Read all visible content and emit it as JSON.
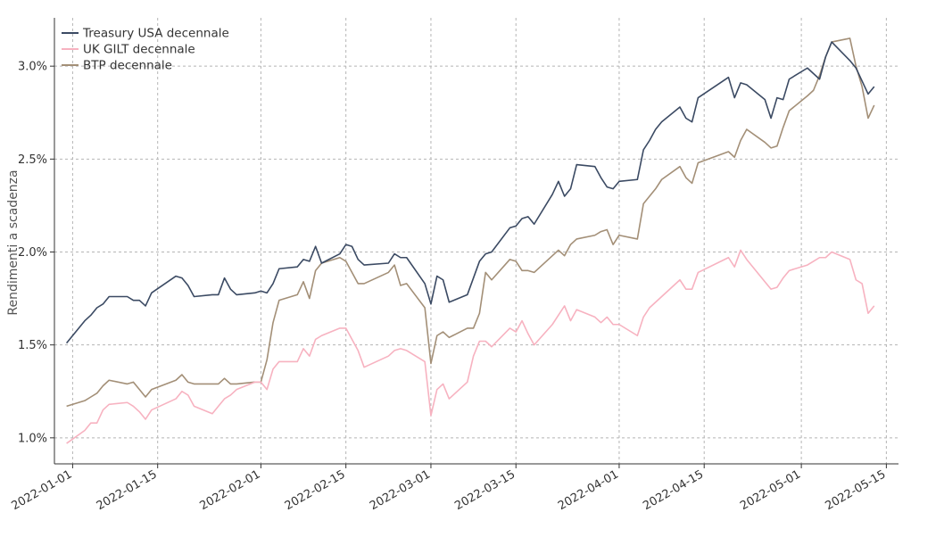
{
  "chart_data": {
    "type": "line",
    "ylabel": "Rendimenti a scadenza",
    "xlabel": "",
    "x_ticks": [
      "2022-01-01",
      "2022-01-15",
      "2022-02-01",
      "2022-02-15",
      "2022-03-01",
      "2022-03-15",
      "2022-04-01",
      "2022-04-15",
      "2022-05-01",
      "2022-05-15"
    ],
    "y_ticks": [
      "1.0%",
      "1.5%",
      "2.0%",
      "2.5%",
      "3.0%"
    ],
    "xlim": [
      "2021-12-29",
      "2022-05-17"
    ],
    "ylim": [
      0.86,
      3.26
    ],
    "grid": true,
    "legend_position": "top-left",
    "series": [
      {
        "name": "Treasury USA decennale",
        "color": "#3b4a63",
        "points": [
          [
            "2021-12-31",
            1.51
          ],
          [
            "2022-01-03",
            1.63
          ],
          [
            "2022-01-04",
            1.66
          ],
          [
            "2022-01-05",
            1.7
          ],
          [
            "2022-01-06",
            1.72
          ],
          [
            "2022-01-07",
            1.76
          ],
          [
            "2022-01-10",
            1.76
          ],
          [
            "2022-01-11",
            1.74
          ],
          [
            "2022-01-12",
            1.74
          ],
          [
            "2022-01-13",
            1.71
          ],
          [
            "2022-01-14",
            1.78
          ],
          [
            "2022-01-18",
            1.87
          ],
          [
            "2022-01-19",
            1.86
          ],
          [
            "2022-01-20",
            1.82
          ],
          [
            "2022-01-21",
            1.76
          ],
          [
            "2022-01-24",
            1.77
          ],
          [
            "2022-01-25",
            1.77
          ],
          [
            "2022-01-26",
            1.86
          ],
          [
            "2022-01-27",
            1.8
          ],
          [
            "2022-01-28",
            1.77
          ],
          [
            "2022-01-31",
            1.78
          ],
          [
            "2022-02-01",
            1.79
          ],
          [
            "2022-02-02",
            1.78
          ],
          [
            "2022-02-03",
            1.83
          ],
          [
            "2022-02-04",
            1.91
          ],
          [
            "2022-02-07",
            1.92
          ],
          [
            "2022-02-08",
            1.96
          ],
          [
            "2022-02-09",
            1.95
          ],
          [
            "2022-02-10",
            2.03
          ],
          [
            "2022-02-11",
            1.94
          ],
          [
            "2022-02-14",
            1.99
          ],
          [
            "2022-02-15",
            2.04
          ],
          [
            "2022-02-16",
            2.03
          ],
          [
            "2022-02-17",
            1.96
          ],
          [
            "2022-02-18",
            1.93
          ],
          [
            "2022-02-22",
            1.94
          ],
          [
            "2022-02-23",
            1.99
          ],
          [
            "2022-02-24",
            1.97
          ],
          [
            "2022-02-25",
            1.97
          ],
          [
            "2022-02-28",
            1.83
          ],
          [
            "2022-03-01",
            1.72
          ],
          [
            "2022-03-02",
            1.87
          ],
          [
            "2022-03-03",
            1.85
          ],
          [
            "2022-03-04",
            1.73
          ],
          [
            "2022-03-07",
            1.77
          ],
          [
            "2022-03-08",
            1.86
          ],
          [
            "2022-03-09",
            1.95
          ],
          [
            "2022-03-10",
            1.99
          ],
          [
            "2022-03-11",
            2.0
          ],
          [
            "2022-03-14",
            2.13
          ],
          [
            "2022-03-15",
            2.14
          ],
          [
            "2022-03-16",
            2.18
          ],
          [
            "2022-03-17",
            2.19
          ],
          [
            "2022-03-18",
            2.15
          ],
          [
            "2022-03-21",
            2.31
          ],
          [
            "2022-03-22",
            2.38
          ],
          [
            "2022-03-23",
            2.3
          ],
          [
            "2022-03-24",
            2.34
          ],
          [
            "2022-03-25",
            2.47
          ],
          [
            "2022-03-28",
            2.46
          ],
          [
            "2022-03-29",
            2.4
          ],
          [
            "2022-03-30",
            2.35
          ],
          [
            "2022-03-31",
            2.34
          ],
          [
            "2022-04-01",
            2.38
          ],
          [
            "2022-04-04",
            2.39
          ],
          [
            "2022-04-05",
            2.55
          ],
          [
            "2022-04-06",
            2.6
          ],
          [
            "2022-04-07",
            2.66
          ],
          [
            "2022-04-08",
            2.7
          ],
          [
            "2022-04-11",
            2.78
          ],
          [
            "2022-04-12",
            2.72
          ],
          [
            "2022-04-13",
            2.7
          ],
          [
            "2022-04-14",
            2.83
          ],
          [
            "2022-04-19",
            2.94
          ],
          [
            "2022-04-20",
            2.83
          ],
          [
            "2022-04-21",
            2.91
          ],
          [
            "2022-04-22",
            2.9
          ],
          [
            "2022-04-25",
            2.82
          ],
          [
            "2022-04-26",
            2.72
          ],
          [
            "2022-04-27",
            2.83
          ],
          [
            "2022-04-28",
            2.82
          ],
          [
            "2022-04-29",
            2.93
          ],
          [
            "2022-05-02",
            2.99
          ],
          [
            "2022-05-03",
            2.96
          ],
          [
            "2022-05-04",
            2.93
          ],
          [
            "2022-05-05",
            3.05
          ],
          [
            "2022-05-06",
            3.13
          ],
          [
            "2022-05-09",
            3.03
          ],
          [
            "2022-05-10",
            2.99
          ],
          [
            "2022-05-11",
            2.92
          ],
          [
            "2022-05-12",
            2.85
          ],
          [
            "2022-05-13",
            2.89
          ]
        ]
      },
      {
        "name": "UK GILT decennale",
        "color": "#f7b2c0",
        "points": [
          [
            "2021-12-31",
            0.97
          ],
          [
            "2022-01-03",
            1.04
          ],
          [
            "2022-01-04",
            1.08
          ],
          [
            "2022-01-05",
            1.08
          ],
          [
            "2022-01-06",
            1.15
          ],
          [
            "2022-01-07",
            1.18
          ],
          [
            "2022-01-10",
            1.19
          ],
          [
            "2022-01-11",
            1.17
          ],
          [
            "2022-01-12",
            1.14
          ],
          [
            "2022-01-13",
            1.1
          ],
          [
            "2022-01-14",
            1.15
          ],
          [
            "2022-01-18",
            1.21
          ],
          [
            "2022-01-19",
            1.25
          ],
          [
            "2022-01-20",
            1.23
          ],
          [
            "2022-01-21",
            1.17
          ],
          [
            "2022-01-24",
            1.13
          ],
          [
            "2022-01-25",
            1.17
          ],
          [
            "2022-01-26",
            1.21
          ],
          [
            "2022-01-27",
            1.23
          ],
          [
            "2022-01-28",
            1.26
          ],
          [
            "2022-01-31",
            1.3
          ],
          [
            "2022-02-01",
            1.3
          ],
          [
            "2022-02-02",
            1.26
          ],
          [
            "2022-02-03",
            1.37
          ],
          [
            "2022-02-04",
            1.41
          ],
          [
            "2022-02-07",
            1.41
          ],
          [
            "2022-02-08",
            1.48
          ],
          [
            "2022-02-09",
            1.44
          ],
          [
            "2022-02-10",
            1.53
          ],
          [
            "2022-02-11",
            1.55
          ],
          [
            "2022-02-14",
            1.59
          ],
          [
            "2022-02-15",
            1.59
          ],
          [
            "2022-02-16",
            1.53
          ],
          [
            "2022-02-17",
            1.47
          ],
          [
            "2022-02-18",
            1.38
          ],
          [
            "2022-02-22",
            1.44
          ],
          [
            "2022-02-23",
            1.47
          ],
          [
            "2022-02-24",
            1.48
          ],
          [
            "2022-02-25",
            1.47
          ],
          [
            "2022-02-28",
            1.41
          ],
          [
            "2022-03-01",
            1.12
          ],
          [
            "2022-03-02",
            1.26
          ],
          [
            "2022-03-03",
            1.29
          ],
          [
            "2022-03-04",
            1.21
          ],
          [
            "2022-03-07",
            1.3
          ],
          [
            "2022-03-08",
            1.44
          ],
          [
            "2022-03-09",
            1.52
          ],
          [
            "2022-03-10",
            1.52
          ],
          [
            "2022-03-11",
            1.49
          ],
          [
            "2022-03-14",
            1.59
          ],
          [
            "2022-03-15",
            1.57
          ],
          [
            "2022-03-16",
            1.63
          ],
          [
            "2022-03-17",
            1.56
          ],
          [
            "2022-03-18",
            1.5
          ],
          [
            "2022-03-21",
            1.61
          ],
          [
            "2022-03-22",
            1.66
          ],
          [
            "2022-03-23",
            1.71
          ],
          [
            "2022-03-24",
            1.63
          ],
          [
            "2022-03-25",
            1.69
          ],
          [
            "2022-03-28",
            1.65
          ],
          [
            "2022-03-29",
            1.62
          ],
          [
            "2022-03-30",
            1.65
          ],
          [
            "2022-03-31",
            1.61
          ],
          [
            "2022-04-01",
            1.61
          ],
          [
            "2022-04-04",
            1.55
          ],
          [
            "2022-04-05",
            1.65
          ],
          [
            "2022-04-06",
            1.7
          ],
          [
            "2022-04-07",
            1.73
          ],
          [
            "2022-04-08",
            1.76
          ],
          [
            "2022-04-11",
            1.85
          ],
          [
            "2022-04-12",
            1.8
          ],
          [
            "2022-04-13",
            1.8
          ],
          [
            "2022-04-14",
            1.89
          ],
          [
            "2022-04-19",
            1.97
          ],
          [
            "2022-04-20",
            1.92
          ],
          [
            "2022-04-21",
            2.01
          ],
          [
            "2022-04-22",
            1.96
          ],
          [
            "2022-04-25",
            1.84
          ],
          [
            "2022-04-26",
            1.8
          ],
          [
            "2022-04-27",
            1.81
          ],
          [
            "2022-04-28",
            1.86
          ],
          [
            "2022-04-29",
            1.9
          ],
          [
            "2022-05-02",
            1.93
          ],
          [
            "2022-05-03",
            1.95
          ],
          [
            "2022-05-04",
            1.97
          ],
          [
            "2022-05-05",
            1.97
          ],
          [
            "2022-05-06",
            2.0
          ],
          [
            "2022-05-09",
            1.96
          ],
          [
            "2022-05-10",
            1.85
          ],
          [
            "2022-05-11",
            1.83
          ],
          [
            "2022-05-12",
            1.67
          ],
          [
            "2022-05-13",
            1.71
          ]
        ]
      },
      {
        "name": "BTP decennale",
        "color": "#a38f77",
        "points": [
          [
            "2021-12-31",
            1.17
          ],
          [
            "2022-01-03",
            1.2
          ],
          [
            "2022-01-04",
            1.22
          ],
          [
            "2022-01-05",
            1.24
          ],
          [
            "2022-01-06",
            1.28
          ],
          [
            "2022-01-07",
            1.31
          ],
          [
            "2022-01-10",
            1.29
          ],
          [
            "2022-01-11",
            1.3
          ],
          [
            "2022-01-12",
            1.26
          ],
          [
            "2022-01-13",
            1.22
          ],
          [
            "2022-01-14",
            1.26
          ],
          [
            "2022-01-18",
            1.31
          ],
          [
            "2022-01-19",
            1.34
          ],
          [
            "2022-01-20",
            1.3
          ],
          [
            "2022-01-21",
            1.29
          ],
          [
            "2022-01-24",
            1.29
          ],
          [
            "2022-01-25",
            1.29
          ],
          [
            "2022-01-26",
            1.32
          ],
          [
            "2022-01-27",
            1.29
          ],
          [
            "2022-01-28",
            1.29
          ],
          [
            "2022-01-31",
            1.3
          ],
          [
            "2022-02-01",
            1.3
          ],
          [
            "2022-02-02",
            1.42
          ],
          [
            "2022-02-03",
            1.62
          ],
          [
            "2022-02-04",
            1.74
          ],
          [
            "2022-02-07",
            1.77
          ],
          [
            "2022-02-08",
            1.84
          ],
          [
            "2022-02-09",
            1.75
          ],
          [
            "2022-02-10",
            1.9
          ],
          [
            "2022-02-11",
            1.94
          ],
          [
            "2022-02-14",
            1.97
          ],
          [
            "2022-02-15",
            1.95
          ],
          [
            "2022-02-16",
            1.89
          ],
          [
            "2022-02-17",
            1.83
          ],
          [
            "2022-02-18",
            1.83
          ],
          [
            "2022-02-22",
            1.89
          ],
          [
            "2022-02-23",
            1.93
          ],
          [
            "2022-02-24",
            1.82
          ],
          [
            "2022-02-25",
            1.83
          ],
          [
            "2022-02-28",
            1.7
          ],
          [
            "2022-03-01",
            1.4
          ],
          [
            "2022-03-02",
            1.55
          ],
          [
            "2022-03-03",
            1.57
          ],
          [
            "2022-03-04",
            1.54
          ],
          [
            "2022-03-07",
            1.59
          ],
          [
            "2022-03-08",
            1.59
          ],
          [
            "2022-03-09",
            1.67
          ],
          [
            "2022-03-10",
            1.89
          ],
          [
            "2022-03-11",
            1.85
          ],
          [
            "2022-03-14",
            1.96
          ],
          [
            "2022-03-15",
            1.95
          ],
          [
            "2022-03-16",
            1.9
          ],
          [
            "2022-03-17",
            1.9
          ],
          [
            "2022-03-18",
            1.89
          ],
          [
            "2022-03-21",
            1.98
          ],
          [
            "2022-03-22",
            2.01
          ],
          [
            "2022-03-23",
            1.98
          ],
          [
            "2022-03-24",
            2.04
          ],
          [
            "2022-03-25",
            2.07
          ],
          [
            "2022-03-28",
            2.09
          ],
          [
            "2022-03-29",
            2.11
          ],
          [
            "2022-03-30",
            2.12
          ],
          [
            "2022-03-31",
            2.04
          ],
          [
            "2022-04-01",
            2.09
          ],
          [
            "2022-04-04",
            2.07
          ],
          [
            "2022-04-05",
            2.26
          ],
          [
            "2022-04-06",
            2.3
          ],
          [
            "2022-04-07",
            2.34
          ],
          [
            "2022-04-08",
            2.39
          ],
          [
            "2022-04-11",
            2.46
          ],
          [
            "2022-04-12",
            2.4
          ],
          [
            "2022-04-13",
            2.37
          ],
          [
            "2022-04-14",
            2.48
          ],
          [
            "2022-04-19",
            2.54
          ],
          [
            "2022-04-20",
            2.51
          ],
          [
            "2022-04-21",
            2.6
          ],
          [
            "2022-04-22",
            2.66
          ],
          [
            "2022-04-25",
            2.59
          ],
          [
            "2022-04-26",
            2.56
          ],
          [
            "2022-04-27",
            2.57
          ],
          [
            "2022-04-28",
            2.67
          ],
          [
            "2022-04-29",
            2.76
          ],
          [
            "2022-05-02",
            2.84
          ],
          [
            "2022-05-03",
            2.87
          ],
          [
            "2022-05-04",
            2.95
          ],
          [
            "2022-05-05",
            3.05
          ],
          [
            "2022-05-06",
            3.13
          ],
          [
            "2022-05-09",
            3.15
          ],
          [
            "2022-05-10",
            3.0
          ],
          [
            "2022-05-11",
            2.89
          ],
          [
            "2022-05-12",
            2.72
          ],
          [
            "2022-05-13",
            2.79
          ]
        ]
      }
    ]
  }
}
